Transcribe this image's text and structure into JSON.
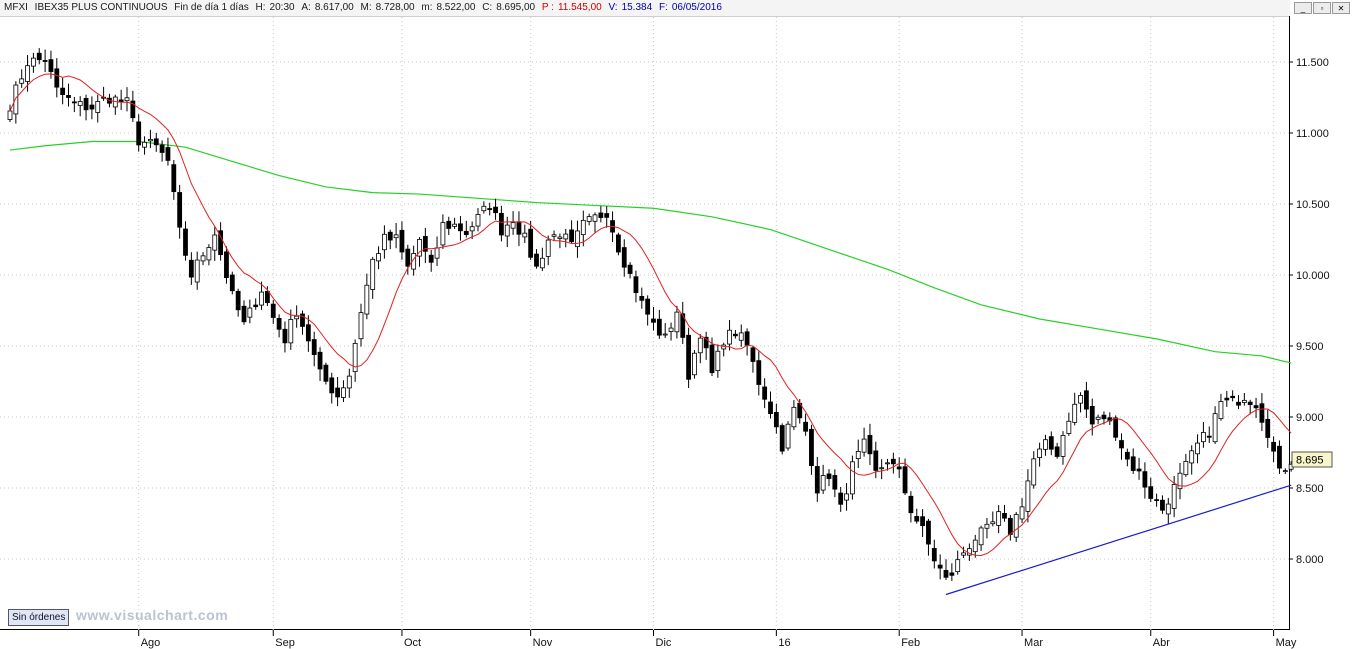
{
  "header": {
    "symbol": "MFXI",
    "name": "IBEX35 PLUS CONTINUOUS",
    "period": "Fin de día 1 días",
    "hour_label": "H:",
    "hour": "20:30",
    "open_label": "A:",
    "open": "8.617,00",
    "high_label": "M:",
    "high": "8.728,00",
    "low_label": "m:",
    "low": "8.522,00",
    "close_label": "C:",
    "close": "8.695,00",
    "p_label": "P :",
    "p_value": "11.545,00",
    "volume_label": "V:",
    "volume": "15.384",
    "date_label": "F:",
    "date": "06/05/2016"
  },
  "window_controls": [
    "_",
    "▫",
    "✕"
  ],
  "status": {
    "orders_label": "Sin órdenes",
    "watermark": "www.visualchart.com"
  },
  "chart_data": {
    "type": "candlestick",
    "title": "",
    "ylim": [
      7600,
      11800
    ],
    "y_ticks": [
      8000,
      8500,
      9000,
      9500,
      10000,
      10500,
      11000,
      11500
    ],
    "y_tick_labels": [
      "8.000",
      "8.500",
      "9.000",
      "9.500",
      "10.000",
      "10.500",
      "11.000",
      "11.500"
    ],
    "x_month_labels": [
      {
        "label": "Ago",
        "bar": 22
      },
      {
        "label": "Sep",
        "bar": 45
      },
      {
        "label": "Oct",
        "bar": 67
      },
      {
        "label": "Nov",
        "bar": 89
      },
      {
        "label": "Dic",
        "bar": 110
      },
      {
        "label": "16",
        "bar": 131
      },
      {
        "label": "Feb",
        "bar": 152
      },
      {
        "label": "Mar",
        "bar": 173
      },
      {
        "label": "Abr",
        "bar": 195
      },
      {
        "label": "May",
        "bar": 216
      }
    ],
    "last_price_label": "8.695",
    "anchors": [
      [
        0,
        11200
      ],
      [
        3,
        11500
      ],
      [
        6,
        11520
      ],
      [
        8,
        11300
      ],
      [
        11,
        11200
      ],
      [
        14,
        11180
      ],
      [
        17,
        11250
      ],
      [
        20,
        11210
      ],
      [
        22,
        10950
      ],
      [
        25,
        10900
      ],
      [
        27,
        10800
      ],
      [
        29,
        10300
      ],
      [
        31,
        10000
      ],
      [
        33,
        10150
      ],
      [
        35,
        10300
      ],
      [
        38,
        9850
      ],
      [
        40,
        9650
      ],
      [
        43,
        9900
      ],
      [
        45,
        9700
      ],
      [
        47,
        9550
      ],
      [
        49,
        9750
      ],
      [
        51,
        9550
      ],
      [
        53,
        9300
      ],
      [
        56,
        9150
      ],
      [
        58,
        9300
      ],
      [
        60,
        9750
      ],
      [
        62,
        10100
      ],
      [
        64,
        10250
      ],
      [
        66,
        10250
      ],
      [
        68,
        10050
      ],
      [
        70,
        10250
      ],
      [
        72,
        10050
      ],
      [
        74,
        10350
      ],
      [
        76,
        10350
      ],
      [
        78,
        10300
      ],
      [
        80,
        10400
      ],
      [
        82,
        10500
      ],
      [
        84,
        10320
      ],
      [
        86,
        10400
      ],
      [
        88,
        10250
      ],
      [
        90,
        10050
      ],
      [
        92,
        10250
      ],
      [
        94,
        10300
      ],
      [
        96,
        10200
      ],
      [
        98,
        10350
      ],
      [
        100,
        10400
      ],
      [
        102,
        10450
      ],
      [
        104,
        10200
      ],
      [
        106,
        10000
      ],
      [
        108,
        9800
      ],
      [
        110,
        9650
      ],
      [
        112,
        9550
      ],
      [
        114,
        9750
      ],
      [
        116,
        9300
      ],
      [
        118,
        9600
      ],
      [
        120,
        9300
      ],
      [
        122,
        9550
      ],
      [
        124,
        9600
      ],
      [
        126,
        9500
      ],
      [
        128,
        9250
      ],
      [
        130,
        9050
      ],
      [
        132,
        8800
      ],
      [
        134,
        9050
      ],
      [
        136,
        8900
      ],
      [
        138,
        8500
      ],
      [
        140,
        8600
      ],
      [
        142,
        8350
      ],
      [
        144,
        8650
      ],
      [
        146,
        8800
      ],
      [
        148,
        8600
      ],
      [
        150,
        8700
      ],
      [
        152,
        8600
      ],
      [
        154,
        8350
      ],
      [
        156,
        8200
      ],
      [
        158,
        8000
      ],
      [
        160,
        7850
      ],
      [
        161,
        7900
      ],
      [
        163,
        8050
      ],
      [
        165,
        8150
      ],
      [
        167,
        8200
      ],
      [
        169,
        8300
      ],
      [
        171,
        8200
      ],
      [
        173,
        8400
      ],
      [
        175,
        8700
      ],
      [
        177,
        8800
      ],
      [
        179,
        8750
      ],
      [
        181,
        9000
      ],
      [
        183,
        9150
      ],
      [
        185,
        8950
      ],
      [
        187,
        9000
      ],
      [
        189,
        8900
      ],
      [
        191,
        8700
      ],
      [
        193,
        8600
      ],
      [
        195,
        8450
      ],
      [
        197,
        8350
      ],
      [
        199,
        8500
      ],
      [
        201,
        8650
      ],
      [
        203,
        8800
      ],
      [
        205,
        8900
      ],
      [
        207,
        9100
      ],
      [
        209,
        9100
      ],
      [
        211,
        9150
      ],
      [
        213,
        9100
      ],
      [
        215,
        8900
      ],
      [
        217,
        8600
      ],
      [
        219,
        8700
      ]
    ],
    "series": [
      {
        "name": "",
        "color": "#e02020",
        "type": "moving_average",
        "period": 10
      },
      {
        "name": "",
        "color": "#27d027",
        "type": "moving_average",
        "points": [
          [
            0,
            10880
          ],
          [
            6,
            10910
          ],
          [
            14,
            10940
          ],
          [
            22,
            10940
          ],
          [
            30,
            10900
          ],
          [
            38,
            10800
          ],
          [
            46,
            10700
          ],
          [
            54,
            10620
          ],
          [
            62,
            10580
          ],
          [
            70,
            10570
          ],
          [
            80,
            10540
          ],
          [
            90,
            10510
          ],
          [
            100,
            10490
          ],
          [
            110,
            10470
          ],
          [
            120,
            10410
          ],
          [
            130,
            10320
          ],
          [
            140,
            10180
          ],
          [
            150,
            10040
          ],
          [
            158,
            9910
          ],
          [
            166,
            9790
          ],
          [
            176,
            9690
          ],
          [
            186,
            9620
          ],
          [
            196,
            9550
          ],
          [
            206,
            9460
          ],
          [
            214,
            9430
          ],
          [
            219,
            9380
          ]
        ]
      }
    ],
    "trendline": {
      "color": "#1a1ad0",
      "from": [
        160,
        7750
      ],
      "to": [
        219,
        8520
      ]
    }
  }
}
